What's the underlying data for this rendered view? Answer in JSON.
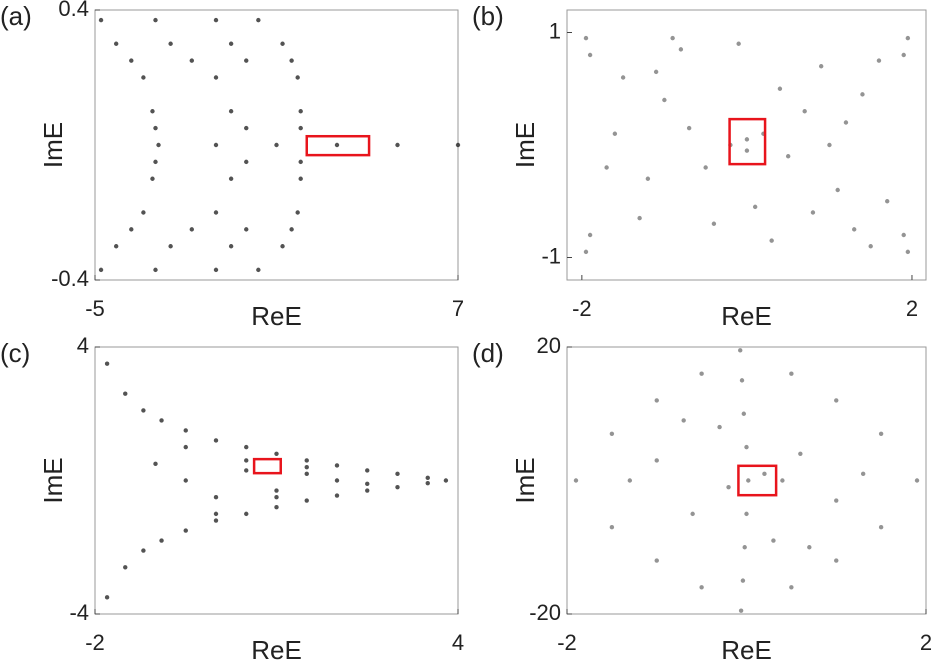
{
  "chart_data": [
    {
      "type": "scatter",
      "panel_label": "(a)",
      "xlabel": "ReE",
      "ylabel": "ImE",
      "color": "#1a1a1a",
      "xlim": [
        -5,
        7
      ],
      "ylim": [
        -0.4,
        0.4
      ],
      "xticks": [
        -5,
        7
      ],
      "yticks": [
        -0.4,
        0.4
      ],
      "x": [
        -4.8,
        -3,
        -1,
        0.4,
        -4.3,
        -2.5,
        -0.5,
        1.2,
        -3.8,
        -1.8,
        0,
        1.5,
        -3.4,
        -1,
        1.7,
        -3.1,
        -0.5,
        1.8,
        -3,
        0,
        1.8,
        -2.9,
        -1,
        1,
        3,
        5,
        7,
        -3,
        0,
        1.8,
        -3.1,
        -0.5,
        1.8,
        -3.4,
        -1,
        1.7,
        -3.8,
        -1.8,
        0,
        1.5,
        -4.3,
        -2.5,
        -0.5,
        1.2,
        -4.8,
        -3,
        -1,
        0.4
      ],
      "values": [
        0.37,
        0.37,
        0.37,
        0.37,
        0.3,
        0.3,
        0.3,
        0.3,
        0.25,
        0.25,
        0.25,
        0.25,
        0.2,
        0.2,
        0.2,
        0.1,
        0.1,
        0.1,
        0.05,
        0.05,
        0.05,
        0,
        0,
        0,
        0,
        0,
        0,
        -0.05,
        -0.05,
        -0.05,
        -0.1,
        -0.1,
        -0.1,
        -0.2,
        -0.2,
        -0.2,
        -0.25,
        -0.25,
        -0.25,
        -0.25,
        -0.3,
        -0.3,
        -0.3,
        -0.3,
        -0.37,
        -0.37,
        -0.37,
        -0.37
      ],
      "highlight": {
        "xlim": [
          2.0,
          4.06
        ],
        "ylim": [
          -0.03,
          0.026
        ],
        "color": "#e8141c"
      }
    },
    {
      "type": "scatter",
      "panel_label": "(b)",
      "xlabel": "ReE",
      "ylabel": "ImE",
      "color": "#707070",
      "xlim": [
        -2.18,
        2.17
      ],
      "ylim": [
        -1.2,
        1.2
      ],
      "xticks": [
        -2,
        2
      ],
      "yticks": [
        -1,
        1
      ],
      "x": [
        -1.95,
        -1.9,
        -1.95,
        -1.9,
        1.95,
        1.9,
        1.95,
        1.9,
        -1.5,
        -1.2,
        -0.8,
        -0.4,
        0,
        0.4,
        0.8,
        1.2,
        1.5,
        -1.6,
        -1.0,
        -0.5,
        0.3,
        0.9,
        1.4,
        1.7,
        -1.3,
        -0.7,
        -0.1,
        0.5,
        1.1,
        1.6,
        -1.7,
        -0.9,
        0.1,
        0.7,
        1.3,
        -0.2,
        0.2,
        0,
        -1.1,
        1.0
      ],
      "values": [
        0.95,
        0.8,
        -0.95,
        -0.8,
        0.95,
        0.8,
        -0.95,
        -0.8,
        0.6,
        -0.3,
        0.85,
        -0.7,
        0.05,
        0.5,
        -0.6,
        0.2,
        -0.9,
        0.1,
        0.4,
        -0.2,
        -0.85,
        0.7,
        0.45,
        -0.5,
        -0.65,
        0.15,
        0.9,
        -0.1,
        -0.4,
        0.75,
        -0.2,
        0.95,
        -0.55,
        0.3,
        -0.75,
        0,
        0.1,
        -0.05,
        0.65,
        0
      ],
      "highlight": {
        "xlim": [
          -0.21,
          0.22
        ],
        "ylim": [
          -0.17,
          0.23
        ],
        "color": "#e8141c"
      }
    },
    {
      "type": "scatter",
      "panel_label": "(c)",
      "xlabel": "ReE",
      "ylabel": "ImE",
      "color": "#1a1a1a",
      "xlim": [
        -2,
        4
      ],
      "ylim": [
        -4,
        4
      ],
      "xticks": [
        -2,
        4
      ],
      "yticks": [
        -4,
        4
      ],
      "x": [
        -1.8,
        -1.5,
        -1.2,
        -0.9,
        -0.5,
        0,
        0.5,
        1,
        1.5,
        2,
        2.5,
        3,
        3.5,
        3.8,
        -1.8,
        -1.5,
        -1.2,
        -0.9,
        -0.5,
        0,
        0.5,
        1,
        1.5,
        2,
        2.5,
        3,
        3.5,
        -1,
        -0.5,
        0,
        0.5,
        1,
        1.5,
        2,
        2.5,
        -0.5,
        0,
        0.5,
        1,
        1.5
      ],
      "values": [
        3.5,
        2.6,
        2.1,
        1.8,
        1.5,
        1.2,
        1.0,
        0.8,
        0.6,
        0.45,
        0.3,
        0.2,
        0.08,
        0,
        -3.5,
        -2.6,
        -2.1,
        -1.8,
        -1.5,
        -1.2,
        -1.0,
        -0.8,
        -0.6,
        -0.45,
        -0.3,
        -0.2,
        -0.08,
        0.5,
        0,
        -0.5,
        0.3,
        -0.3,
        0.2,
        0,
        -0.1,
        1,
        -1,
        0.6,
        -0.5,
        0.4
      ],
      "highlight": {
        "xlim": [
          0.63,
          1.07
        ],
        "ylim": [
          0.22,
          0.64
        ],
        "color": "#e8141c"
      }
    },
    {
      "type": "scatter",
      "panel_label": "(d)",
      "xlabel": "ReE",
      "ylabel": "ImE",
      "color": "#707070",
      "xlim": [
        -2,
        2
      ],
      "ylim": [
        -20,
        20
      ],
      "xticks": [
        -2,
        2
      ],
      "yticks": [
        -20,
        20
      ],
      "x": [
        -0.07,
        -0.05,
        -0.03,
        0,
        0.02,
        0,
        -0.02,
        -0.04,
        -0.06,
        -1.9,
        -1.5,
        -1,
        -0.5,
        0.5,
        1,
        1.5,
        1.9,
        1.5,
        1,
        0.5,
        -0.5,
        -1,
        -1.5,
        -1,
        -0.6,
        0.6,
        1,
        -0.3,
        0.3,
        0.2,
        -0.2,
        0.4,
        -1.3,
        1.3,
        0.7,
        -0.7
      ],
      "values": [
        19.5,
        15,
        10,
        5,
        0,
        -5,
        -10,
        -15,
        -19.5,
        0,
        7,
        12,
        16,
        16,
        12,
        7,
        0,
        -7,
        -12,
        -16,
        -16,
        -12,
        -7,
        3,
        -5,
        4,
        -3,
        8,
        -9,
        1,
        -1,
        0,
        0,
        1,
        -10,
        9
      ],
      "highlight": {
        "xlim": [
          -0.09,
          0.33
        ],
        "ylim": [
          -2.2,
          2.2
        ],
        "color": "#e8141c"
      }
    }
  ]
}
